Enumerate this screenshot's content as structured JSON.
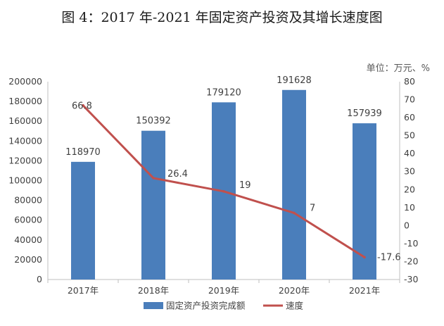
{
  "title": "图 4：2017 年-2021 年固定资产投资及其增长速度图",
  "unit_label": "单位：万元、%",
  "colors": {
    "bar": "#4a7ebb",
    "line": "#c0504d",
    "axis": "#bfbfbf",
    "text": "#404040"
  },
  "chart_data": {
    "type": "bar",
    "categories": [
      "2017年",
      "2018年",
      "2019年",
      "2020年",
      "2021年"
    ],
    "series": [
      {
        "name": "固定资产投资完成额",
        "type": "bar",
        "axis": "left",
        "values": [
          118970,
          150392,
          179120,
          191628,
          157939
        ]
      },
      {
        "name": "速度",
        "type": "line",
        "axis": "right",
        "values": [
          66.8,
          26.4,
          19,
          7,
          -17.6
        ]
      }
    ],
    "ylim_left": [
      0,
      200000
    ],
    "yticks_left": [
      "0",
      "20000",
      "40000",
      "60000",
      "80000",
      "100000",
      "120000",
      "140000",
      "160000",
      "180000",
      "200000"
    ],
    "ylim_right": [
      -30,
      80
    ],
    "yticks_right": [
      "-30",
      "-20",
      "-10",
      "0",
      "10",
      "20",
      "30",
      "40",
      "50",
      "60",
      "70",
      "80"
    ],
    "legend": {
      "position": "bottom",
      "items": [
        "固定资产投资完成额",
        "速度"
      ]
    },
    "bar_labels": [
      "118970",
      "150392",
      "179120",
      "191628",
      "157939"
    ],
    "line_labels": [
      "66.8",
      "26.4",
      "19",
      "7",
      "-17.6"
    ]
  }
}
